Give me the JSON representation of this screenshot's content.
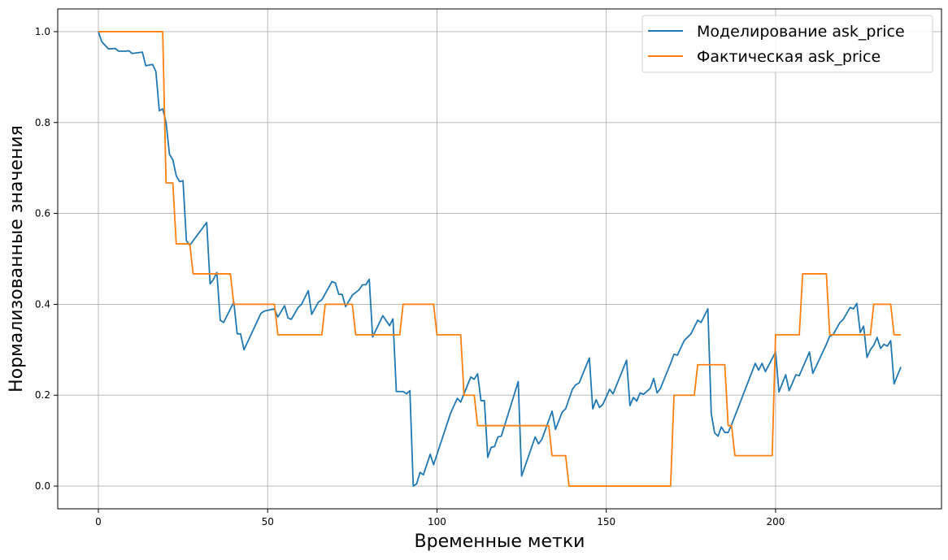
{
  "chart_data": {
    "type": "line",
    "title": "",
    "xlabel": "Временные метки",
    "ylabel": "Нормализованные значения",
    "xlim": [
      -12,
      249
    ],
    "ylim": [
      -0.05,
      1.05
    ],
    "xticks": [
      0,
      50,
      100,
      150,
      200
    ],
    "yticks": [
      0.0,
      0.2,
      0.4,
      0.6,
      0.8,
      1.0
    ],
    "xtick_labels": [
      "0",
      "50",
      "100",
      "150",
      "200"
    ],
    "ytick_labels": [
      "0.0",
      "0.2",
      "0.4",
      "0.6",
      "0.8",
      "1.0"
    ],
    "grid": true,
    "legend_position": "top-right",
    "series": [
      {
        "name": "Моделирование ask_price",
        "color": "#1f77b4",
        "points": [
          [
            0,
            1.0
          ],
          [
            1,
            0.978
          ],
          [
            2,
            0.97
          ],
          [
            3,
            0.962
          ],
          [
            5,
            0.963
          ],
          [
            6,
            0.957
          ],
          [
            8,
            0.957
          ],
          [
            9,
            0.958
          ],
          [
            10,
            0.952
          ],
          [
            11,
            0.953
          ],
          [
            13,
            0.955
          ],
          [
            14,
            0.925
          ],
          [
            16,
            0.928
          ],
          [
            17,
            0.912
          ],
          [
            18,
            0.826
          ],
          [
            19,
            0.83
          ],
          [
            20,
            0.8
          ],
          [
            21,
            0.73
          ],
          [
            22,
            0.718
          ],
          [
            23,
            0.683
          ],
          [
            24,
            0.67
          ],
          [
            25,
            0.672
          ],
          [
            26,
            0.54
          ],
          [
            27,
            0.53
          ],
          [
            30,
            0.56
          ],
          [
            32,
            0.58
          ],
          [
            33,
            0.445
          ],
          [
            34,
            0.455
          ],
          [
            35,
            0.47
          ],
          [
            36,
            0.365
          ],
          [
            37,
            0.36
          ],
          [
            40,
            0.405
          ],
          [
            41,
            0.335
          ],
          [
            42,
            0.335
          ],
          [
            43,
            0.3
          ],
          [
            48,
            0.38
          ],
          [
            49,
            0.385
          ],
          [
            52,
            0.39
          ],
          [
            53,
            0.372
          ],
          [
            55,
            0.397
          ],
          [
            56,
            0.37
          ],
          [
            57,
            0.367
          ],
          [
            59,
            0.393
          ],
          [
            60,
            0.4
          ],
          [
            62,
            0.43
          ],
          [
            63,
            0.378
          ],
          [
            65,
            0.405
          ],
          [
            66,
            0.41
          ],
          [
            69,
            0.45
          ],
          [
            70,
            0.447
          ],
          [
            71,
            0.422
          ],
          [
            72,
            0.422
          ],
          [
            73,
            0.395
          ],
          [
            75,
            0.42
          ],
          [
            77,
            0.432
          ],
          [
            78,
            0.443
          ],
          [
            79,
            0.443
          ],
          [
            80,
            0.455
          ],
          [
            81,
            0.328
          ],
          [
            84,
            0.375
          ],
          [
            86,
            0.353
          ],
          [
            87,
            0.368
          ],
          [
            88,
            0.208
          ],
          [
            90,
            0.208
          ],
          [
            91,
            0.203
          ],
          [
            92,
            0.21
          ],
          [
            93,
            0.0
          ],
          [
            94,
            0.005
          ],
          [
            95,
            0.03
          ],
          [
            96,
            0.025
          ],
          [
            98,
            0.07
          ],
          [
            99,
            0.047
          ],
          [
            104,
            0.16
          ],
          [
            106,
            0.193
          ],
          [
            107,
            0.185
          ],
          [
            110,
            0.24
          ],
          [
            111,
            0.235
          ],
          [
            112,
            0.247
          ],
          [
            113,
            0.188
          ],
          [
            114,
            0.188
          ],
          [
            115,
            0.063
          ],
          [
            116,
            0.085
          ],
          [
            117,
            0.087
          ],
          [
            118,
            0.108
          ],
          [
            119,
            0.11
          ],
          [
            124,
            0.23
          ],
          [
            125,
            0.022
          ],
          [
            129,
            0.108
          ],
          [
            130,
            0.093
          ],
          [
            131,
            0.103
          ],
          [
            134,
            0.165
          ],
          [
            135,
            0.125
          ],
          [
            137,
            0.163
          ],
          [
            138,
            0.17
          ],
          [
            140,
            0.213
          ],
          [
            141,
            0.223
          ],
          [
            142,
            0.227
          ],
          [
            145,
            0.282
          ],
          [
            146,
            0.17
          ],
          [
            147,
            0.19
          ],
          [
            148,
            0.173
          ],
          [
            149,
            0.18
          ],
          [
            151,
            0.213
          ],
          [
            152,
            0.203
          ],
          [
            156,
            0.277
          ],
          [
            157,
            0.177
          ],
          [
            158,
            0.195
          ],
          [
            159,
            0.187
          ],
          [
            160,
            0.205
          ],
          [
            161,
            0.202
          ],
          [
            163,
            0.215
          ],
          [
            164,
            0.237
          ],
          [
            165,
            0.205
          ],
          [
            166,
            0.215
          ],
          [
            169,
            0.27
          ],
          [
            170,
            0.29
          ],
          [
            171,
            0.288
          ],
          [
            173,
            0.32
          ],
          [
            175,
            0.335
          ],
          [
            176,
            0.35
          ],
          [
            177,
            0.365
          ],
          [
            178,
            0.36
          ],
          [
            180,
            0.39
          ],
          [
            181,
            0.16
          ],
          [
            182,
            0.117
          ],
          [
            183,
            0.11
          ],
          [
            184,
            0.13
          ],
          [
            185,
            0.118
          ],
          [
            186,
            0.118
          ],
          [
            187,
            0.135
          ],
          [
            194,
            0.27
          ],
          [
            195,
            0.255
          ],
          [
            196,
            0.27
          ],
          [
            197,
            0.252
          ],
          [
            200,
            0.295
          ],
          [
            201,
            0.207
          ],
          [
            203,
            0.245
          ],
          [
            204,
            0.21
          ],
          [
            206,
            0.245
          ],
          [
            207,
            0.243
          ],
          [
            210,
            0.295
          ],
          [
            211,
            0.248
          ],
          [
            215,
            0.312
          ],
          [
            216,
            0.33
          ],
          [
            217,
            0.333
          ],
          [
            219,
            0.36
          ],
          [
            220,
            0.367
          ],
          [
            222,
            0.393
          ],
          [
            223,
            0.39
          ],
          [
            224,
            0.402
          ],
          [
            225,
            0.338
          ],
          [
            226,
            0.352
          ],
          [
            227,
            0.283
          ],
          [
            228,
            0.3
          ],
          [
            229,
            0.31
          ],
          [
            230,
            0.327
          ],
          [
            231,
            0.303
          ],
          [
            232,
            0.312
          ],
          [
            233,
            0.308
          ],
          [
            234,
            0.32
          ],
          [
            235,
            0.225
          ],
          [
            237,
            0.262
          ]
        ]
      },
      {
        "name": "Фактическая ask_price",
        "color": "#ff7f0e",
        "points": [
          [
            0,
            1.0
          ],
          [
            19,
            1.0
          ],
          [
            20,
            0.667
          ],
          [
            22,
            0.667
          ],
          [
            23,
            0.533
          ],
          [
            27,
            0.533
          ],
          [
            28,
            0.467
          ],
          [
            39,
            0.467
          ],
          [
            40,
            0.4
          ],
          [
            52,
            0.4
          ],
          [
            53,
            0.333
          ],
          [
            66,
            0.333
          ],
          [
            67,
            0.4
          ],
          [
            75,
            0.4
          ],
          [
            76,
            0.333
          ],
          [
            89,
            0.333
          ],
          [
            90,
            0.4
          ],
          [
            99,
            0.4
          ],
          [
            100,
            0.333
          ],
          [
            107,
            0.333
          ],
          [
            108,
            0.2
          ],
          [
            111,
            0.2
          ],
          [
            112,
            0.133
          ],
          [
            133,
            0.133
          ],
          [
            134,
            0.067
          ],
          [
            138,
            0.067
          ],
          [
            139,
            0.0
          ],
          [
            169,
            0.0
          ],
          [
            170,
            0.2
          ],
          [
            176,
            0.2
          ],
          [
            177,
            0.267
          ],
          [
            185,
            0.267
          ],
          [
            186,
            0.133
          ],
          [
            187,
            0.133
          ],
          [
            188,
            0.067
          ],
          [
            199,
            0.067
          ],
          [
            200,
            0.333
          ],
          [
            207,
            0.333
          ],
          [
            208,
            0.467
          ],
          [
            215,
            0.467
          ],
          [
            216,
            0.333
          ],
          [
            228,
            0.333
          ],
          [
            229,
            0.4
          ],
          [
            234,
            0.4
          ],
          [
            235,
            0.333
          ],
          [
            237,
            0.333
          ]
        ]
      }
    ]
  }
}
